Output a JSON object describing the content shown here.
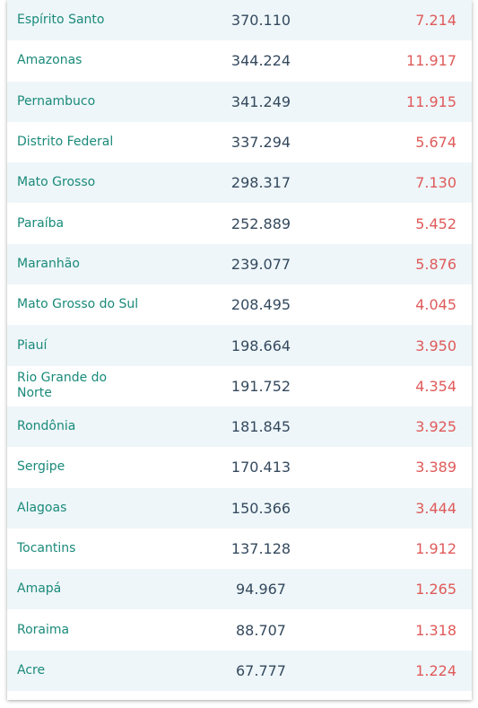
{
  "table": {
    "rows": [
      {
        "state": "Espírito Santo",
        "cases": "370.110",
        "deaths": "7.214"
      },
      {
        "state": "Amazonas",
        "cases": "344.224",
        "deaths": "11.917"
      },
      {
        "state": "Pernambuco",
        "cases": "341.249",
        "deaths": "11.915"
      },
      {
        "state": "Distrito Federal",
        "cases": "337.294",
        "deaths": "5.674"
      },
      {
        "state": "Mato Grosso",
        "cases": "298.317",
        "deaths": "7.130"
      },
      {
        "state": "Paraíba",
        "cases": "252.889",
        "deaths": "5.452"
      },
      {
        "state": "Maranhão",
        "cases": "239.077",
        "deaths": "5.876"
      },
      {
        "state": "Mato Grosso do Sul",
        "cases": "208.495",
        "deaths": "4.045"
      },
      {
        "state": "Piauí",
        "cases": "198.664",
        "deaths": "3.950"
      },
      {
        "state": "Rio Grande do Norte",
        "cases": "191.752",
        "deaths": "4.354"
      },
      {
        "state": "Rondônia",
        "cases": "181.845",
        "deaths": "3.925"
      },
      {
        "state": "Sergipe",
        "cases": "170.413",
        "deaths": "3.389"
      },
      {
        "state": "Alagoas",
        "cases": "150.366",
        "deaths": "3.444"
      },
      {
        "state": "Tocantins",
        "cases": "137.128",
        "deaths": "1.912"
      },
      {
        "state": "Amapá",
        "cases": "94.967",
        "deaths": "1.265"
      },
      {
        "state": "Roraima",
        "cases": "88.707",
        "deaths": "1.318"
      },
      {
        "state": "Acre",
        "cases": "67.777",
        "deaths": "1.224"
      }
    ]
  },
  "colors": {
    "state_text": "#1a8a7a",
    "cases_text": "#34495e",
    "deaths_text": "#e05a5a",
    "row_alt_bg": "#eef6f9",
    "row_bg": "#ffffff"
  }
}
